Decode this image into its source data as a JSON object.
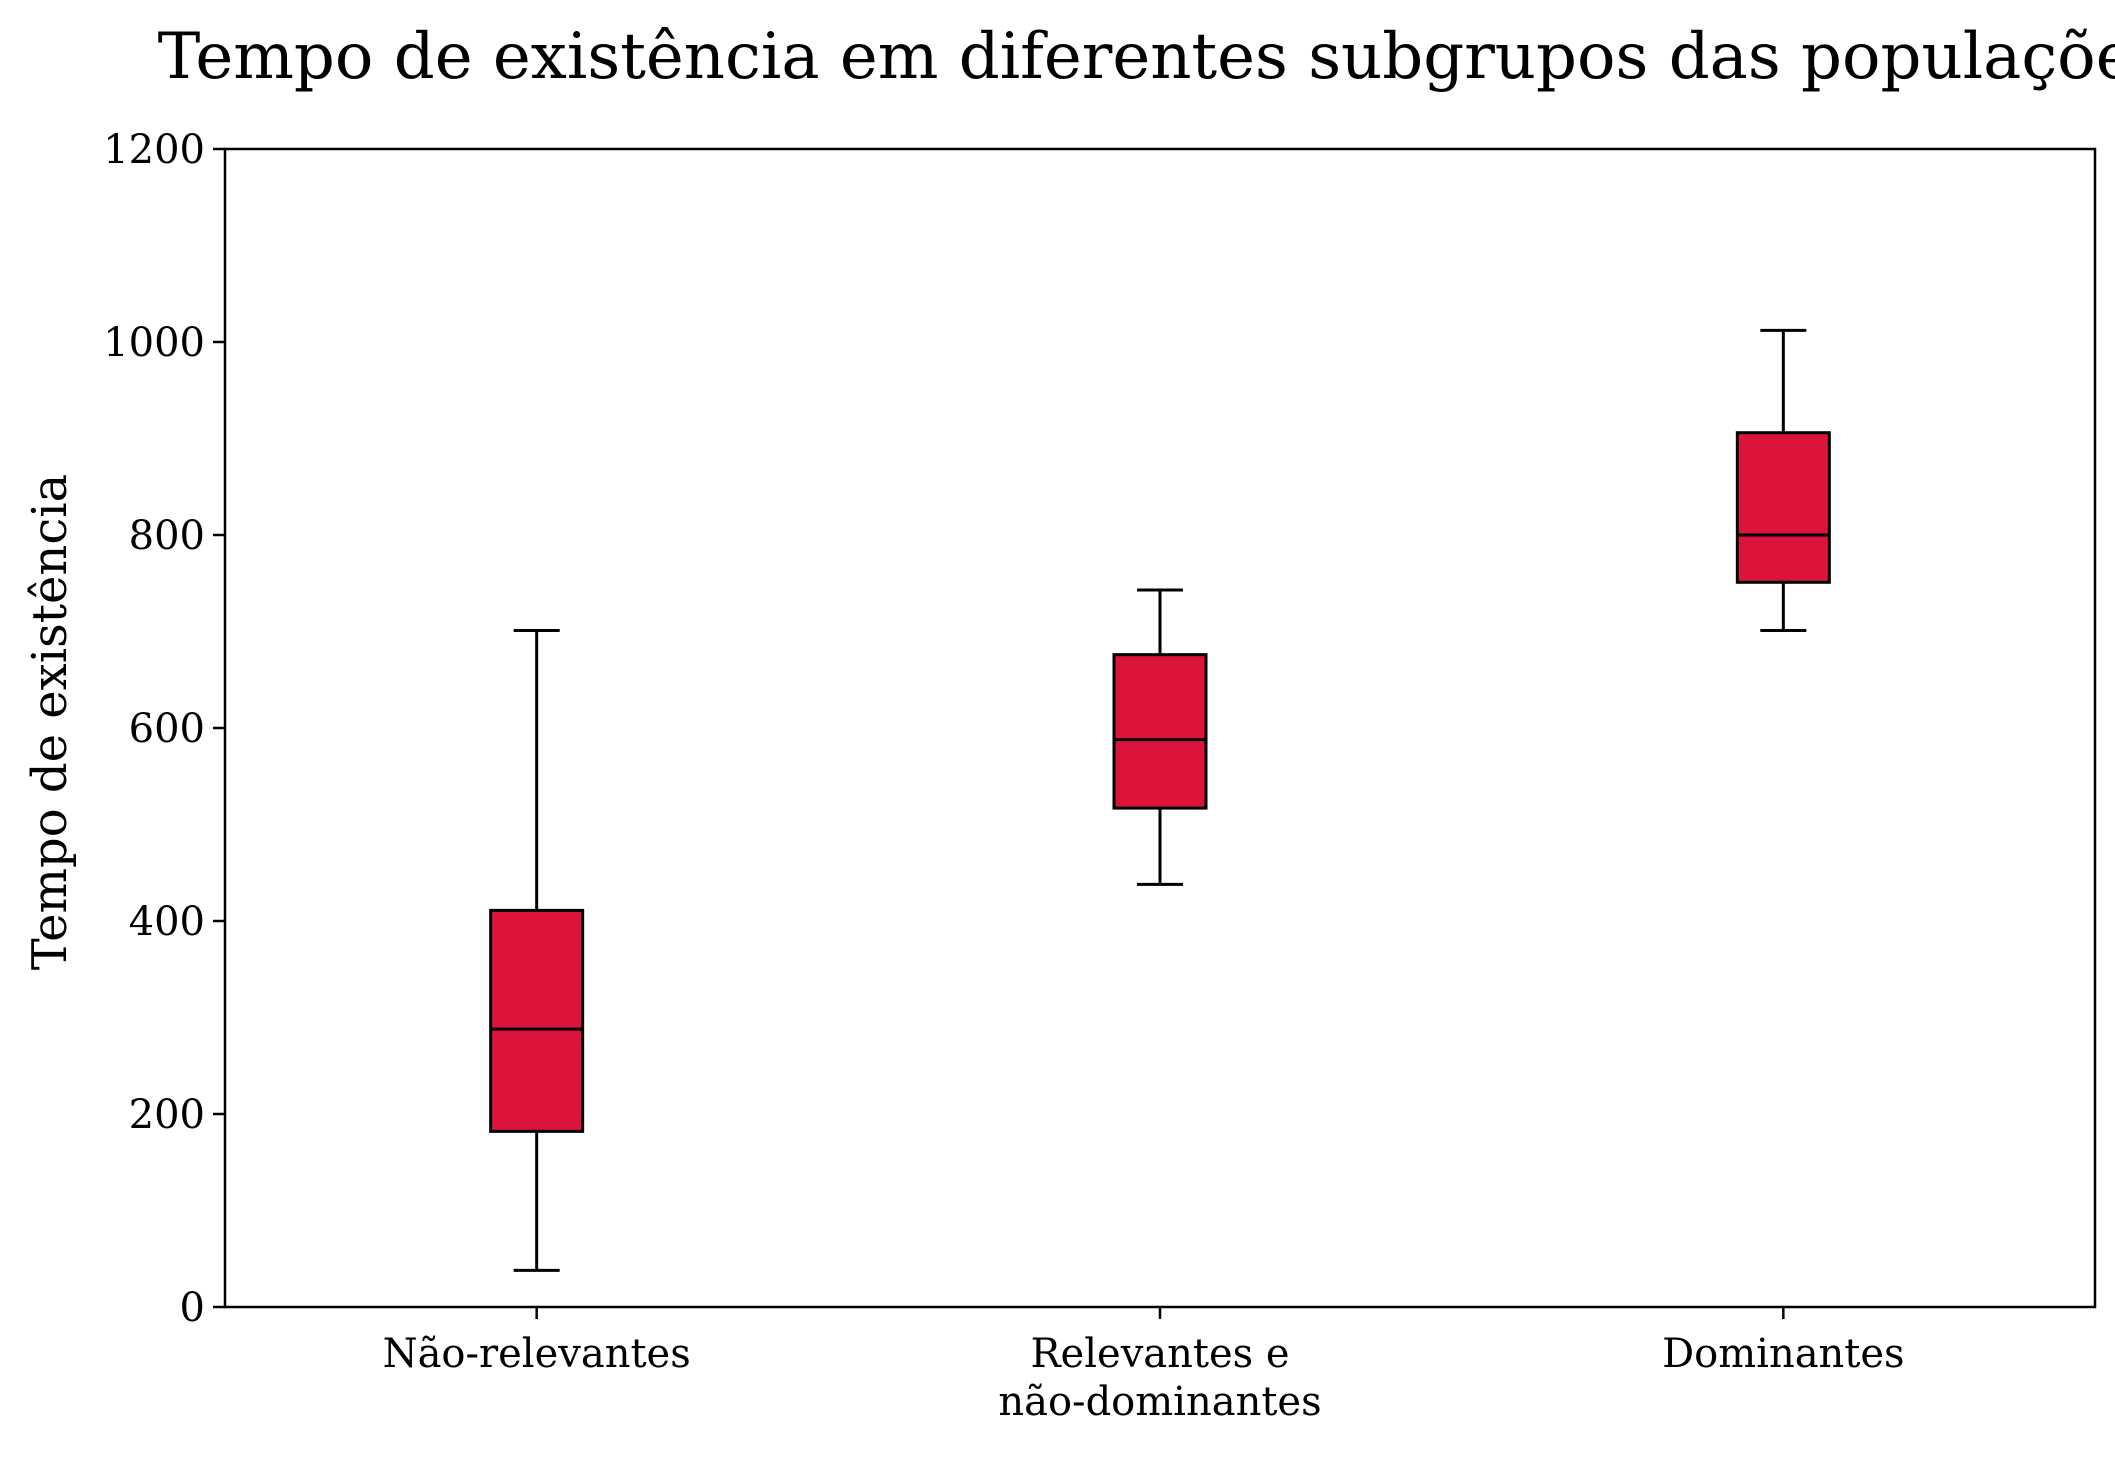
{
  "chart_data": {
    "type": "box",
    "title": "Tempo de existência em diferentes subgrupos das populações",
    "xlabel": "",
    "ylabel": "Tempo de existência",
    "ylim": [
      0,
      1200
    ],
    "yticks": [
      0,
      200,
      400,
      600,
      800,
      1000,
      1200
    ],
    "grid": false,
    "box_color": "#DC143C",
    "categories": [
      [
        "Não-relevantes"
      ],
      [
        "Relevantes e",
        "não-dominantes"
      ],
      [
        "Dominantes"
      ]
    ],
    "boxes": [
      {
        "whisker_low": 38,
        "q1": 182,
        "median": 288,
        "q3": 411,
        "whisker_high": 701
      },
      {
        "whisker_low": 438,
        "q1": 517,
        "median": 588,
        "q3": 676,
        "whisker_high": 743
      },
      {
        "whisker_low": 701,
        "q1": 751,
        "median": 800,
        "q3": 906,
        "whisker_high": 1012
      }
    ]
  }
}
